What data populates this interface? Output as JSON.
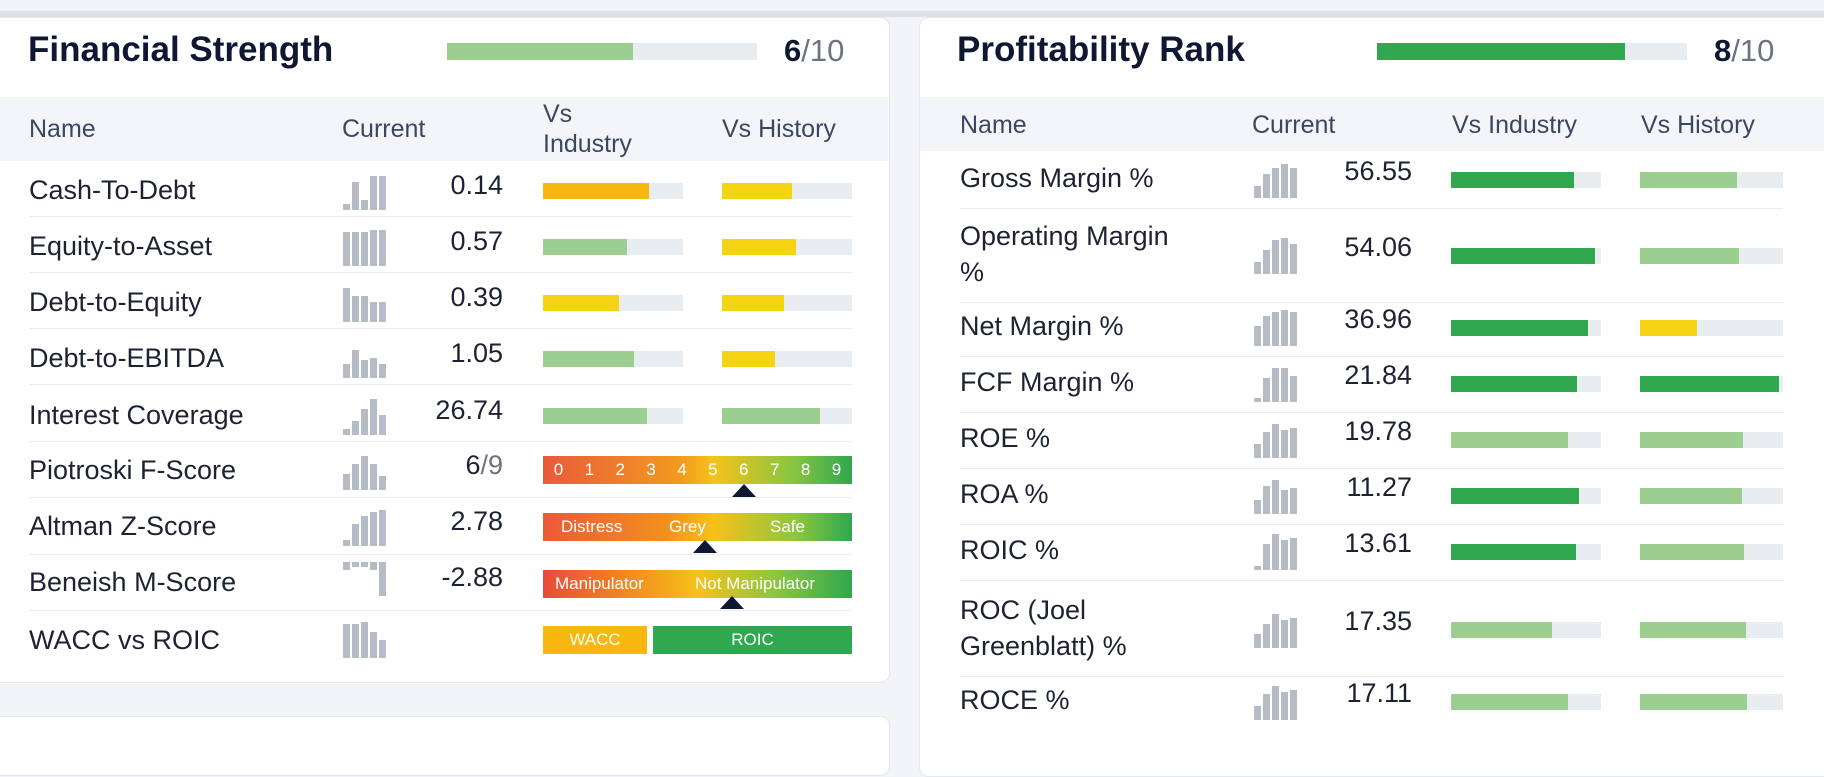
{
  "colors": {
    "dark_green": "#2fa84f",
    "light_green": "#9ccf8f",
    "yellow": "#f5d414",
    "orange": "#f8b70f",
    "track": "#e8edf2"
  },
  "financial_strength": {
    "title": "Financial Strength",
    "score": "6",
    "score_max": "/10",
    "score_fraction": 0.6,
    "headers": {
      "name": "Name",
      "current": "Current",
      "vs_industry": "Vs Industry",
      "vs_history": "Vs History"
    },
    "rows": [
      {
        "name": "Cash-To-Debt",
        "value": "0.14",
        "industry": 0.76,
        "industry_color": "#f8b70f",
        "history": 0.54,
        "history_color": "#f5d414"
      },
      {
        "name": "Equity-to-Asset",
        "value": "0.57",
        "industry": 0.6,
        "industry_color": "#9ccf8f",
        "history": 0.57,
        "history_color": "#f5d414"
      },
      {
        "name": "Debt-to-Equity",
        "value": "0.39",
        "industry": 0.54,
        "industry_color": "#f5d414",
        "history": 0.48,
        "history_color": "#f5d414"
      },
      {
        "name": "Debt-to-EBITDA",
        "value": "1.05",
        "industry": 0.65,
        "industry_color": "#9ccf8f",
        "history": 0.41,
        "history_color": "#f5d414"
      },
      {
        "name": "Interest Coverage",
        "value": "26.74",
        "industry": 0.74,
        "industry_color": "#9ccf8f",
        "history": 0.75,
        "history_color": "#9ccf8f"
      }
    ],
    "piotroski": {
      "name": "Piotroski F-Score",
      "value": "6",
      "max": "/9",
      "scale": [
        "0",
        "1",
        "2",
        "3",
        "4",
        "5",
        "6",
        "7",
        "8",
        "9"
      ],
      "marker": 6
    },
    "altman": {
      "name": "Altman Z-Score",
      "value": "2.78",
      "labels": [
        "Distress",
        "Grey",
        "Safe"
      ]
    },
    "beneish": {
      "name": "Beneish M-Score",
      "value": "-2.88",
      "labels": [
        "Manipulator",
        "Not Manipulator"
      ]
    },
    "wacc": {
      "name": "WACC vs ROIC",
      "wacc_label": "WACC",
      "roic_label": "ROIC"
    }
  },
  "profitability_rank": {
    "title": "Profitability Rank",
    "score": "8",
    "score_max": "/10",
    "score_fraction": 0.8,
    "headers": {
      "name": "Name",
      "current": "Current",
      "vs_industry": "Vs Industry",
      "vs_history": "Vs History"
    },
    "rows": [
      {
        "name": "Gross Margin %",
        "value": "56.55",
        "industry": 0.82,
        "industry_color": "#2fa84f",
        "history": 0.68,
        "history_color": "#9ccf8f"
      },
      {
        "name": "Operating Margin %",
        "value": "54.06",
        "industry": 0.96,
        "industry_color": "#2fa84f",
        "history": 0.69,
        "history_color": "#9ccf8f"
      },
      {
        "name": "Net Margin %",
        "value": "36.96",
        "industry": 0.91,
        "industry_color": "#2fa84f",
        "history": 0.4,
        "history_color": "#f5d414"
      },
      {
        "name": "FCF Margin %",
        "value": "21.84",
        "industry": 0.84,
        "industry_color": "#2fa84f",
        "history": 0.97,
        "history_color": "#2fa84f"
      },
      {
        "name": "ROE %",
        "value": "19.78",
        "industry": 0.78,
        "industry_color": "#9ccf8f",
        "history": 0.72,
        "history_color": "#9ccf8f"
      },
      {
        "name": "ROA %",
        "value": "11.27",
        "industry": 0.85,
        "industry_color": "#2fa84f",
        "history": 0.71,
        "history_color": "#9ccf8f"
      },
      {
        "name": "ROIC %",
        "value": "13.61",
        "industry": 0.83,
        "industry_color": "#2fa84f",
        "history": 0.73,
        "history_color": "#9ccf8f"
      },
      {
        "name": "ROC (Joel Greenblatt) %",
        "value": "17.35",
        "industry": 0.67,
        "industry_color": "#9ccf8f",
        "history": 0.74,
        "history_color": "#9ccf8f"
      },
      {
        "name": "ROCE %",
        "value": "17.11",
        "industry": 0.78,
        "industry_color": "#9ccf8f",
        "history": 0.75,
        "history_color": "#9ccf8f"
      }
    ]
  }
}
